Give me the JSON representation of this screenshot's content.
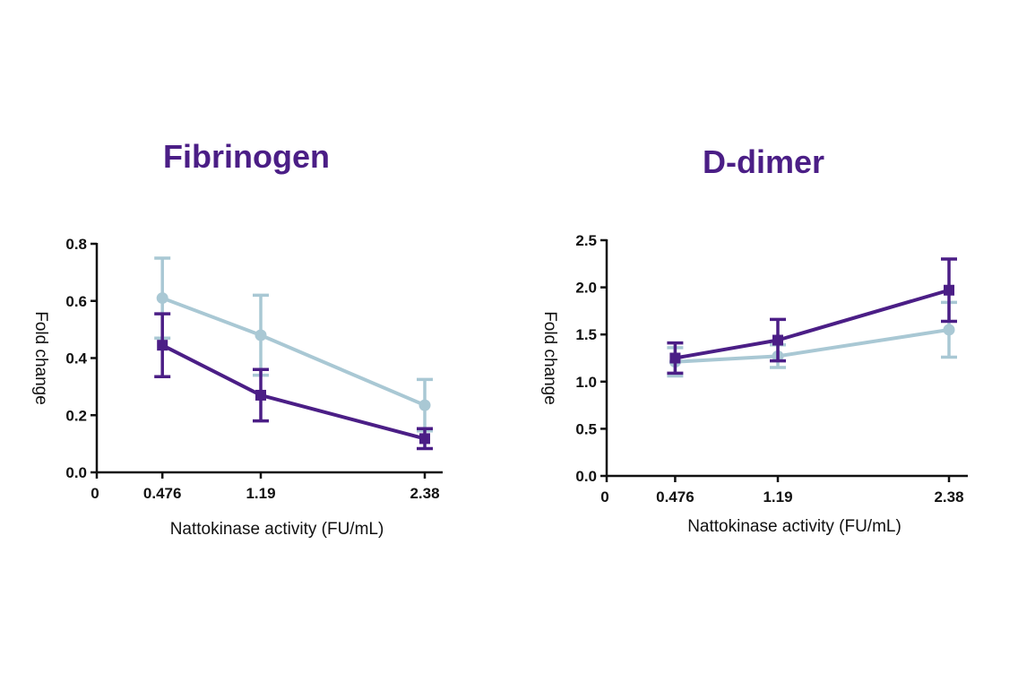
{
  "chart_data": [
    {
      "type": "line",
      "title": "Fibrinogen",
      "xlabel": "Nattokinase activity (FU/mL)",
      "ylabel": "Fold change",
      "x": [
        0.476,
        1.19,
        2.38
      ],
      "xticks": [
        "0",
        "0.476",
        "1.19",
        "2.38"
      ],
      "xlim": [
        0,
        2.38
      ],
      "ylim": [
        0,
        0.8
      ],
      "yticks": [
        "0.0",
        "0.2",
        "0.4",
        "0.6",
        "0.8"
      ],
      "series": [
        {
          "marker": "circle",
          "color": "#a9c8d4",
          "values": [
            0.61,
            0.48,
            0.235
          ],
          "error": [
            0.14,
            0.14,
            0.09
          ]
        },
        {
          "marker": "square",
          "color": "#4b1e86",
          "values": [
            0.445,
            0.27,
            0.118
          ],
          "error": [
            0.11,
            0.09,
            0.035
          ]
        }
      ]
    },
    {
      "type": "line",
      "title": "D-dimer",
      "xlabel": "Nattokinase activity (FU/mL)",
      "ylabel": "Fold change",
      "x": [
        0.476,
        1.19,
        2.38
      ],
      "xticks": [
        "0",
        "0.476",
        "1.19",
        "2.38"
      ],
      "xlim": [
        0,
        2.38
      ],
      "ylim": [
        0,
        2.5
      ],
      "yticks": [
        "0.0",
        "0.5",
        "1.0",
        "1.5",
        "2.0",
        "2.5"
      ],
      "series": [
        {
          "marker": "circle",
          "color": "#a9c8d4",
          "values": [
            1.21,
            1.27,
            1.55
          ],
          "error": [
            0.15,
            0.12,
            0.29
          ]
        },
        {
          "marker": "square",
          "color": "#4b1e86",
          "values": [
            1.25,
            1.44,
            1.97
          ],
          "error": [
            0.16,
            0.22,
            0.33
          ]
        }
      ]
    }
  ]
}
